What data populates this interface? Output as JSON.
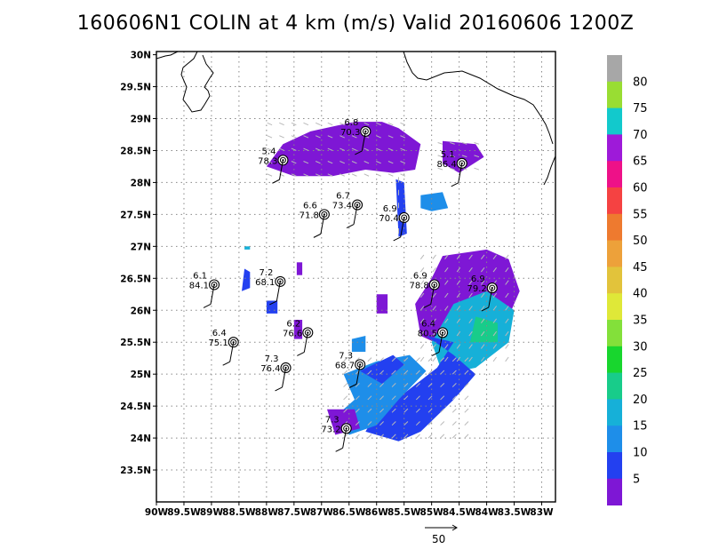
{
  "title": "160606N1  COLIN  at  4  km  (m/s)  Valid  20160606  1200Z",
  "map": {
    "lon_min": -90,
    "lon_max": -82.75,
    "lat_min": 23,
    "lat_max": 30.05,
    "x_ticks": [
      "90W",
      "89.5W",
      "89W",
      "88.5W",
      "88W",
      "87.5W",
      "87W",
      "86.5W",
      "86W",
      "85.5W",
      "85W",
      "84.5W",
      "84W",
      "83.5W",
      "83W"
    ],
    "y_ticks": [
      "30N",
      "29.5N",
      "29N",
      "28.5N",
      "28N",
      "27.5N",
      "27N",
      "26.5N",
      "26N",
      "25.5N",
      "25N",
      "24.5N",
      "24N",
      "23.5N"
    ]
  },
  "colorbar": {
    "labels": [
      "80",
      "75",
      "70",
      "65",
      "60",
      "55",
      "50",
      "45",
      "40",
      "35",
      "30",
      "25",
      "20",
      "15",
      "10",
      "5"
    ],
    "colors": [
      "#a7a7a7",
      "#99dd33",
      "#12c9cc",
      "#9e1ad9",
      "#ee1188",
      "#f54242",
      "#ee7a2f",
      "#eda13a",
      "#e2c33b",
      "#dfe838",
      "#83e03a",
      "#18d62e",
      "#18cc8a",
      "#16b0d8",
      "#1e8ee9",
      "#2340f0",
      "#7e17d5"
    ]
  },
  "vector_key": {
    "label": "50"
  },
  "observations": [
    {
      "lon": -86.2,
      "lat": 28.8,
      "v1": "6.8",
      "v2": "70.3"
    },
    {
      "lon": -87.7,
      "lat": 28.35,
      "v1": "5.4",
      "v2": "78.3"
    },
    {
      "lon": -84.45,
      "lat": 28.3,
      "v1": "5.1",
      "v2": "86.4"
    },
    {
      "lon": -86.35,
      "lat": 27.65,
      "v1": "6.7",
      "v2": "73.4"
    },
    {
      "lon": -86.95,
      "lat": 27.5,
      "v1": "6.6",
      "v2": "71.8"
    },
    {
      "lon": -85.5,
      "lat": 27.45,
      "v1": "6.9",
      "v2": "70.4"
    },
    {
      "lon": -88.95,
      "lat": 26.4,
      "v1": "6.1",
      "v2": "84.1"
    },
    {
      "lon": -87.75,
      "lat": 26.45,
      "v1": "7.2",
      "v2": "68.1"
    },
    {
      "lon": -84.95,
      "lat": 26.4,
      "v1": "6.9",
      "v2": "78.8"
    },
    {
      "lon": -83.9,
      "lat": 26.35,
      "v1": "6.9",
      "v2": "79.2"
    },
    {
      "lon": -84.8,
      "lat": 25.65,
      "v1": "6.4",
      "v2": "80.5"
    },
    {
      "lon": -87.25,
      "lat": 25.65,
      "v1": "6.2",
      "v2": "76.6"
    },
    {
      "lon": -88.6,
      "lat": 25.5,
      "v1": "6.4",
      "v2": "75.1"
    },
    {
      "lon": -87.65,
      "lat": 25.1,
      "v1": "7.3",
      "v2": "76.4"
    },
    {
      "lon": -86.3,
      "lat": 25.15,
      "v1": "7.3",
      "v2": "68.7"
    },
    {
      "lon": -86.55,
      "lat": 24.15,
      "v1": "7.3",
      "v2": "73.2"
    }
  ]
}
